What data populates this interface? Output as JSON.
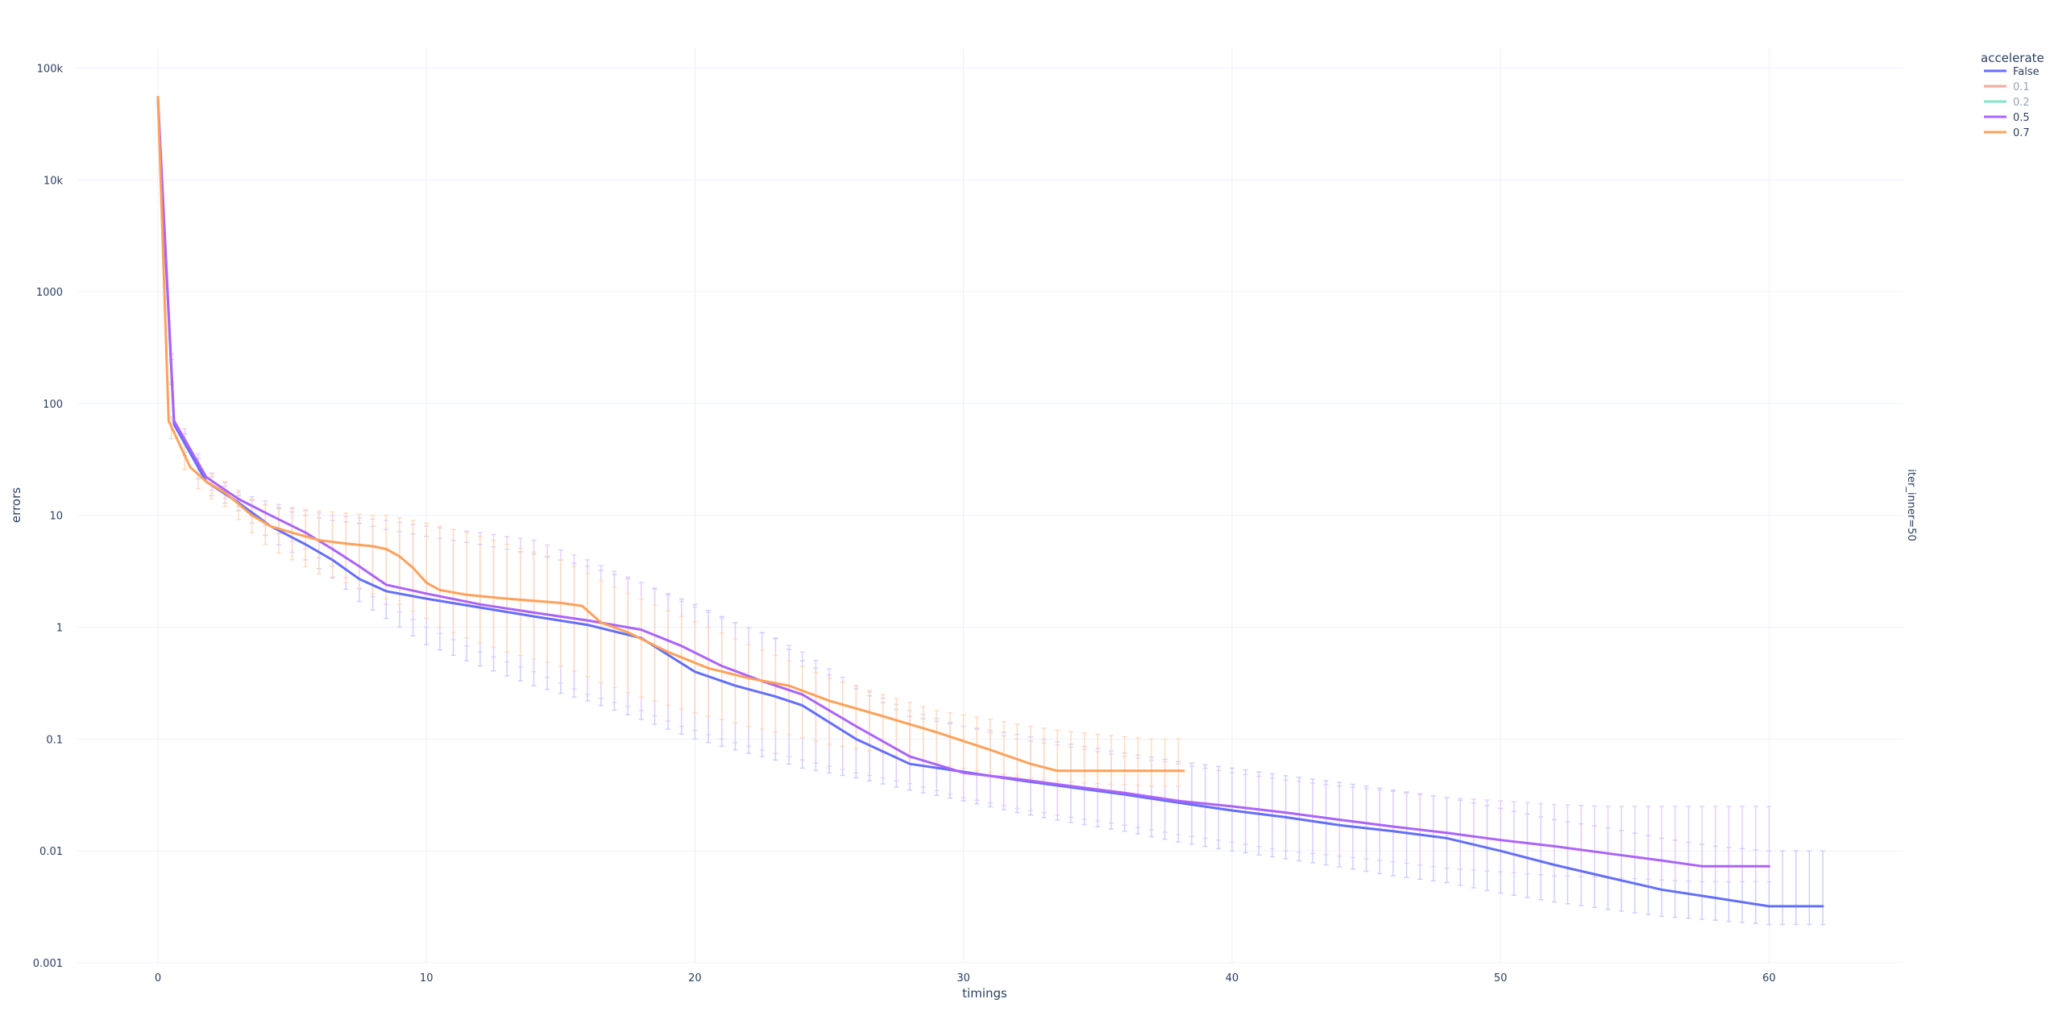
{
  "chart_data": {
    "type": "line",
    "xlabel": "timings",
    "ylabel": "errors",
    "facet_label": "iter_inner=50",
    "log_y": true,
    "xlim": [
      -3,
      65
    ],
    "ylim": [
      0.001,
      150000
    ],
    "grid": true,
    "legend_title": "accelerate",
    "legend_position": "top-right",
    "x_ticks": [
      {
        "value": 0,
        "label": "0"
      },
      {
        "value": 10,
        "label": "10"
      },
      {
        "value": 20,
        "label": "20"
      },
      {
        "value": 30,
        "label": "30"
      },
      {
        "value": 40,
        "label": "40"
      },
      {
        "value": 50,
        "label": "50"
      },
      {
        "value": 60,
        "label": "60"
      }
    ],
    "y_ticks": [
      {
        "value": 0.001,
        "label": "0.001"
      },
      {
        "value": 0.01,
        "label": "0.01"
      },
      {
        "value": 0.1,
        "label": "0.1"
      },
      {
        "value": 1,
        "label": "1"
      },
      {
        "value": 10,
        "label": "10"
      },
      {
        "value": 100,
        "label": "100"
      },
      {
        "value": 1000,
        "label": "1000"
      },
      {
        "value": 10000,
        "label": "10k"
      },
      {
        "value": 100000,
        "label": "100k"
      }
    ],
    "series": [
      {
        "name": "False",
        "color": "#636efa",
        "visible": true,
        "error_color": "#c9cdfd",
        "x": [
          0,
          0.6,
          1.8,
          3,
          4.2,
          5.5,
          6.5,
          7.5,
          8.5,
          10,
          12,
          14,
          16,
          18,
          20,
          21.5,
          23,
          24,
          26,
          28,
          30,
          32,
          34,
          36,
          38,
          40,
          42,
          44,
          46,
          48,
          50,
          52,
          54,
          56,
          58,
          60,
          62
        ],
        "y": [
          50000,
          65,
          20,
          13,
          8,
          5.5,
          4,
          2.7,
          2.1,
          1.8,
          1.5,
          1.25,
          1.05,
          0.8,
          0.4,
          0.3,
          0.24,
          0.2,
          0.1,
          0.06,
          0.051,
          0.043,
          0.037,
          0.032,
          0.027,
          0.023,
          0.02,
          0.017,
          0.015,
          0.013,
          0.01,
          0.0075,
          0.0058,
          0.0045,
          0.0038,
          0.0032,
          0.0032
        ],
        "error_upper": [
          70000,
          80,
          24,
          15,
          12,
          10,
          9,
          8.5,
          7.5,
          6.5,
          5.5,
          4.5,
          3.5,
          2.5,
          1.6,
          1.1,
          0.8,
          0.5,
          0.28,
          0.16,
          0.13,
          0.11,
          0.09,
          0.075,
          0.063,
          0.055,
          0.047,
          0.041,
          0.035,
          0.03,
          0.024,
          0.019,
          0.016,
          0.013,
          0.011,
          0.01,
          0.01
        ],
        "error_lower": [
          35000,
          50,
          16,
          11,
          6,
          4,
          2.8,
          1.7,
          1.2,
          0.7,
          0.45,
          0.3,
          0.22,
          0.15,
          0.1,
          0.08,
          0.065,
          0.055,
          0.045,
          0.035,
          0.028,
          0.022,
          0.018,
          0.015,
          0.012,
          0.01,
          0.0085,
          0.0072,
          0.006,
          0.0052,
          0.0042,
          0.0035,
          0.003,
          0.0026,
          0.0024,
          0.0022,
          0.0022
        ]
      },
      {
        "name": "0.1",
        "color": "#ef553b",
        "visible": false,
        "x": [],
        "y": []
      },
      {
        "name": "0.2",
        "color": "#00cc96",
        "visible": false,
        "x": [],
        "y": []
      },
      {
        "name": "0.5",
        "color": "#ab63fa",
        "visible": true,
        "error_color": "#e3cdfd",
        "x": [
          0,
          0.6,
          1.8,
          3,
          4.2,
          5.5,
          6.5,
          7.5,
          8.5,
          10,
          12,
          14,
          16,
          18,
          19.5,
          21,
          22.5,
          24,
          26,
          28,
          30,
          32,
          34,
          36,
          38,
          40,
          42,
          44,
          46,
          48,
          50,
          52,
          54,
          56,
          57.5,
          60
        ],
        "y": [
          55000,
          70,
          22,
          14,
          10,
          7,
          5,
          3.5,
          2.4,
          2,
          1.6,
          1.35,
          1.15,
          0.95,
          0.68,
          0.45,
          0.33,
          0.25,
          0.13,
          0.07,
          0.05,
          0.044,
          0.038,
          0.033,
          0.028,
          0.025,
          0.022,
          0.019,
          0.0165,
          0.0145,
          0.0125,
          0.011,
          0.0095,
          0.0082,
          0.0073,
          0.0073
        ],
        "error_upper": [
          75000,
          90,
          26,
          16,
          13,
          11,
          10,
          9.5,
          9,
          8,
          7,
          6,
          4,
          2.5,
          1.7,
          1.2,
          0.9,
          0.6,
          0.3,
          0.18,
          0.13,
          0.1,
          0.085,
          0.07,
          0.06,
          0.05,
          0.043,
          0.038,
          0.034,
          0.03,
          0.028,
          0.026,
          0.025,
          0.025,
          0.025,
          0.025
        ],
        "error_lower": [
          38000,
          52,
          18,
          12,
          7.5,
          5,
          3.5,
          2.2,
          1.6,
          1,
          0.6,
          0.4,
          0.25,
          0.18,
          0.13,
          0.1,
          0.08,
          0.065,
          0.05,
          0.04,
          0.03,
          0.024,
          0.02,
          0.017,
          0.014,
          0.012,
          0.01,
          0.009,
          0.008,
          0.007,
          0.0065,
          0.006,
          0.0058,
          0.0055,
          0.0053,
          0.0053
        ]
      },
      {
        "name": "0.7",
        "color": "#ffa15a",
        "visible": true,
        "error_color": "#ffd9bd",
        "x": [
          0,
          0.4,
          1.2,
          1.8,
          2.5,
          3.5,
          4.2,
          5,
          6,
          7,
          8,
          8.5,
          9,
          9.5,
          10,
          10.5,
          11.5,
          13,
          15,
          15.8,
          16.5,
          17.5,
          19,
          20.5,
          22,
          23.5,
          25,
          27,
          29,
          31,
          32.5,
          33.5,
          35,
          37,
          38.2
        ],
        "y": [
          55000,
          70,
          27,
          20,
          16,
          10,
          8,
          7,
          6,
          5.6,
          5.3,
          5,
          4.3,
          3.4,
          2.5,
          2.15,
          1.95,
          1.8,
          1.65,
          1.55,
          1.1,
          0.9,
          0.6,
          0.43,
          0.35,
          0.3,
          0.22,
          0.16,
          0.115,
          0.08,
          0.06,
          0.052,
          0.052,
          0.052,
          0.052
        ],
        "error_upper": [
          75000,
          85,
          35,
          25,
          20,
          14,
          12,
          11.5,
          11,
          10.5,
          10,
          10,
          9.5,
          9,
          8.5,
          8,
          7,
          5.5,
          4,
          3.2,
          2.6,
          2,
          1.4,
          1,
          0.7,
          0.5,
          0.35,
          0.25,
          0.18,
          0.15,
          0.13,
          0.12,
          0.11,
          0.1,
          0.1
        ],
        "error_lower": [
          38000,
          55,
          20,
          15,
          12,
          7,
          5,
          4,
          3,
          2.5,
          2,
          1.8,
          1.6,
          1.4,
          1.2,
          1,
          0.8,
          0.6,
          0.45,
          0.38,
          0.32,
          0.26,
          0.2,
          0.16,
          0.13,
          0.11,
          0.09,
          0.075,
          0.06,
          0.05,
          0.045,
          0.042,
          0.04,
          0.038,
          0.038
        ]
      }
    ]
  }
}
